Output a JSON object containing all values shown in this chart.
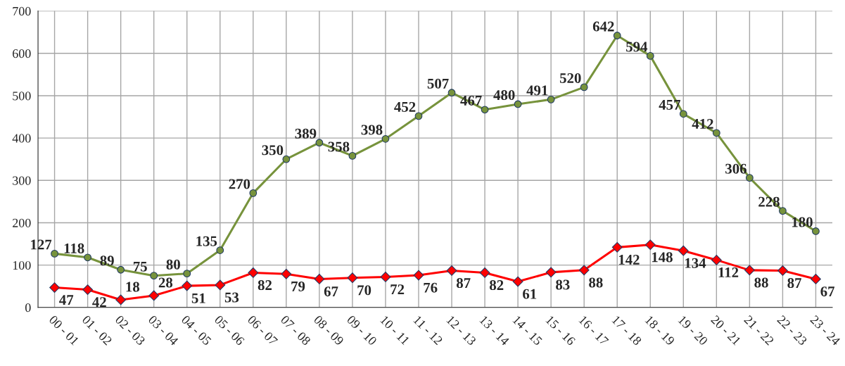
{
  "chart_data": {
    "type": "line",
    "categories": [
      "00 - 01",
      "01 - 02",
      "02 - 03",
      "03 - 04",
      "04 - 05",
      "05 - 06",
      "06 - 07",
      "07 - 08",
      "08 - 09",
      "09 - 10",
      "10 - 11",
      "11 - 12",
      "12 - 13",
      "13 - 14",
      "14 - 15",
      "15 - 16",
      "16 - 17",
      "17 - 18",
      "18 - 19",
      "19 - 20",
      "20 - 21",
      "21 - 22",
      "22 - 23",
      "23 - 24"
    ],
    "series": [
      {
        "color": "#77933c",
        "marker": "circle",
        "values": [
          127,
          118,
          89,
          75,
          80,
          135,
          270,
          350,
          389,
          358,
          398,
          452,
          507,
          467,
          480,
          491,
          520,
          642,
          594,
          457,
          412,
          306,
          228,
          180
        ]
      },
      {
        "color": "#ff0000",
        "marker": "diamond",
        "values": [
          47,
          42,
          18,
          28,
          51,
          53,
          82,
          79,
          67,
          70,
          72,
          76,
          87,
          82,
          61,
          83,
          88,
          142,
          148,
          134,
          112,
          88,
          87,
          67
        ]
      }
    ],
    "ylim": [
      0,
      700
    ],
    "yticks": [
      0,
      100,
      200,
      300,
      400,
      500,
      600,
      700
    ],
    "grid": true,
    "data_labels": true,
    "legend": false
  }
}
